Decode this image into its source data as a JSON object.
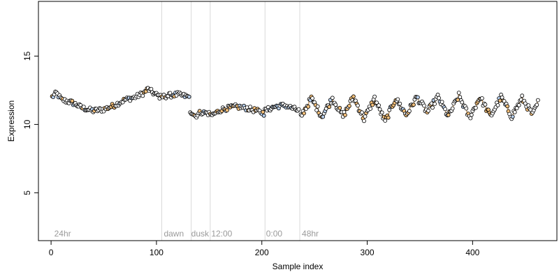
{
  "chart_data": {
    "type": "scatter",
    "title": "",
    "xlabel": "Sample index",
    "ylabel": "Expression",
    "xlim": [
      -12,
      480
    ],
    "ylim": [
      1.5,
      19
    ],
    "x_ticks": [
      0,
      100,
      200,
      300,
      400
    ],
    "y_ticks": [
      5,
      10,
      15
    ],
    "grid": false,
    "colors": {
      "background": "#ffffff",
      "axis": "#000000",
      "vline": "#d9d9d9",
      "annotation_text": "#9a9a9a",
      "point_stroke": "#000000",
      "fill_orange": "#f5c07a",
      "fill_blue": "#b8d0ee",
      "fill_white": "#ffffff",
      "line_orange": "#e0a050",
      "line_blue": "#7fa6dd"
    },
    "vlines": [
      105,
      133,
      151,
      203,
      236
    ],
    "annotations": [
      {
        "x": 3,
        "text": "24hr"
      },
      {
        "x": 107,
        "text": "dawn"
      },
      {
        "x": 133,
        "text": "dusk"
      },
      {
        "x": 152,
        "text": "12:00"
      },
      {
        "x": 204,
        "text": "0:00"
      },
      {
        "x": 238,
        "text": "48hr"
      }
    ],
    "annotation_y": 2.0,
    "segments": [
      {
        "x_start": 1,
        "x_end": 104,
        "trend": "wave",
        "fill": "orange",
        "keys": [
          [
            1,
            12.0
          ],
          [
            5,
            12.3
          ],
          [
            10,
            11.8
          ],
          [
            20,
            11.6
          ],
          [
            30,
            11.2
          ],
          [
            40,
            11.0
          ],
          [
            50,
            11.1
          ],
          [
            60,
            11.4
          ],
          [
            70,
            11.8
          ],
          [
            80,
            12.0
          ],
          [
            88,
            12.3
          ],
          [
            92,
            12.6
          ],
          [
            97,
            12.3
          ],
          [
            104,
            12.0
          ]
        ]
      },
      {
        "x_start": 105,
        "x_end": 131,
        "trend": "flat",
        "fill": "orange",
        "keys": [
          [
            105,
            12.0
          ],
          [
            110,
            12.1
          ],
          [
            120,
            12.2
          ],
          [
            131,
            12.0
          ]
        ]
      },
      {
        "x_start": 132,
        "x_end": 150,
        "trend": "flat",
        "fill": "orange",
        "keys": [
          [
            132,
            11.0
          ],
          [
            137,
            10.6
          ],
          [
            142,
            10.9
          ],
          [
            150,
            10.8
          ]
        ]
      },
      {
        "x_start": 151,
        "x_end": 202,
        "trend": "flat",
        "fill": "orange",
        "keys": [
          [
            151,
            10.6
          ],
          [
            162,
            11.1
          ],
          [
            175,
            11.3
          ],
          [
            185,
            11.2
          ],
          [
            195,
            11.0
          ],
          [
            202,
            10.8
          ]
        ]
      },
      {
        "x_start": 203,
        "x_end": 235,
        "trend": "flat",
        "fill": "blue",
        "keys": [
          [
            203,
            11.0
          ],
          [
            212,
            11.3
          ],
          [
            222,
            11.4
          ],
          [
            235,
            11.0
          ]
        ]
      },
      {
        "x_start": 237,
        "x_end": 462,
        "trend": "oscillating",
        "fill": "orange",
        "keys": [
          [
            237,
            10.6
          ],
          [
            247,
            11.9
          ],
          [
            257,
            10.6
          ],
          [
            267,
            11.9
          ],
          [
            277,
            10.6
          ],
          [
            287,
            12.0
          ],
          [
            297,
            10.4
          ],
          [
            307,
            11.9
          ],
          [
            317,
            10.2
          ],
          [
            327,
            11.9
          ],
          [
            337,
            10.7
          ],
          [
            347,
            12.0
          ],
          [
            357,
            10.9
          ],
          [
            367,
            12.0
          ],
          [
            377,
            10.6
          ],
          [
            387,
            12.1
          ],
          [
            397,
            10.5
          ],
          [
            407,
            12.0
          ],
          [
            417,
            10.6
          ],
          [
            427,
            12.0
          ],
          [
            437,
            10.6
          ],
          [
            447,
            11.9
          ],
          [
            457,
            10.7
          ],
          [
            462,
            11.6
          ]
        ]
      }
    ]
  }
}
